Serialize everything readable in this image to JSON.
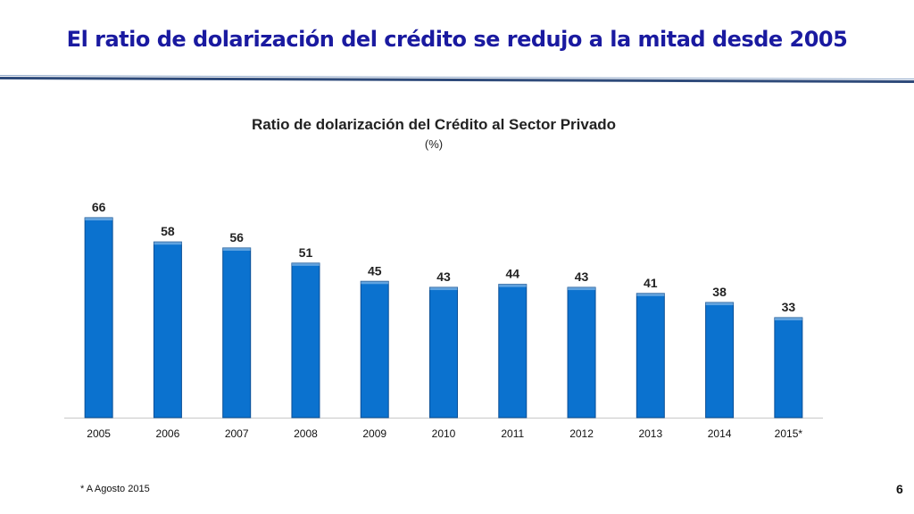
{
  "slide": {
    "title": "El ratio de dolarización del crédito se redujo a la mitad desde 2005",
    "footnote": "* A Agosto 2015",
    "page_number": "6"
  },
  "colors": {
    "title": "#1a1aa0",
    "rule_dark": "#2e4a7a",
    "rule_light": "#8fa7c8",
    "bar": "#0b72cf",
    "bar_edge": "#0a4f96"
  },
  "chart_data": {
    "type": "bar",
    "title": "Ratio de dolarización del Crédito al Sector Privado",
    "subtitle": "(%)",
    "categories": [
      "2005",
      "2006",
      "2007",
      "2008",
      "2009",
      "2010",
      "2011",
      "2012",
      "2013",
      "2014",
      "2015*"
    ],
    "values": [
      66,
      58,
      56,
      51,
      45,
      43,
      44,
      43,
      41,
      38,
      33
    ],
    "data_labels": [
      "66",
      "58",
      "56",
      "51",
      "45",
      "43",
      "44",
      "43",
      "41",
      "38",
      "33"
    ],
    "ylim": [
      0,
      70
    ],
    "grid": false,
    "legend": "none"
  }
}
